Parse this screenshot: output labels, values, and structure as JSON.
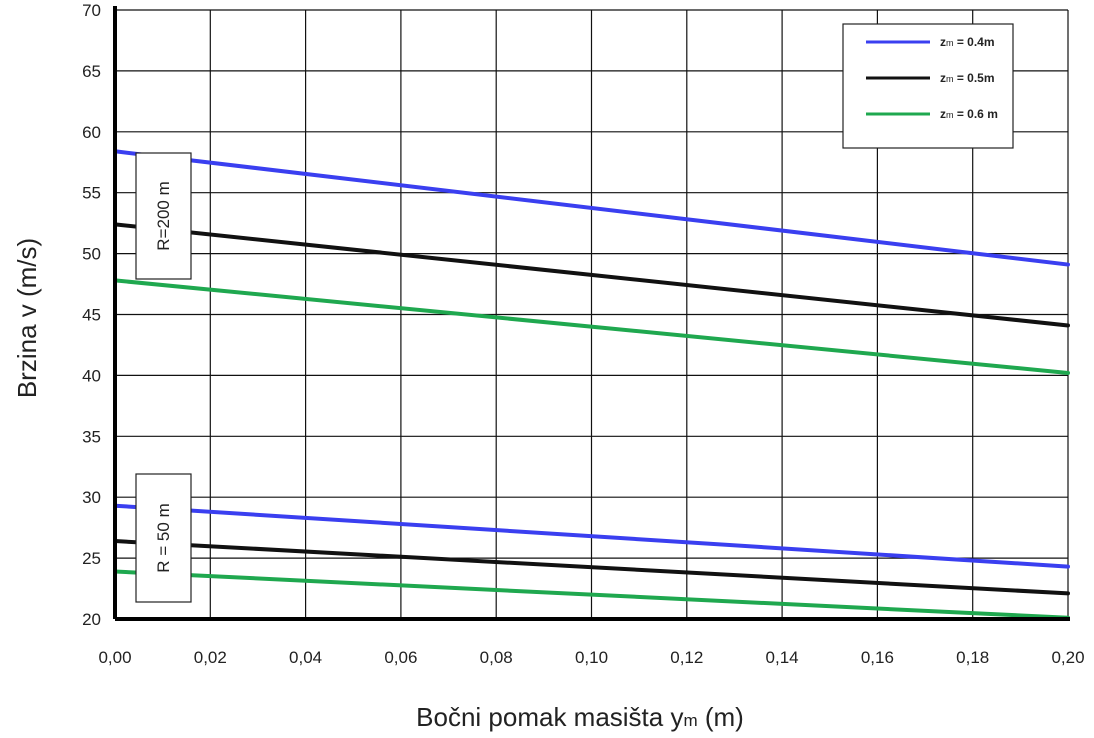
{
  "chart_data": {
    "type": "line",
    "xlabel": "Bočni pomak masišta y",
    "xlabel_sub": "m",
    "xlabel_unit": " (m)",
    "ylabel": "Brzina v (m/s)",
    "xlim": [
      0,
      0.2
    ],
    "ylim": [
      20,
      70
    ],
    "x_ticks": [
      "0,00",
      "0,02",
      "0,04",
      "0,06",
      "0,08",
      "0,10",
      "0,12",
      "0,14",
      "0,16",
      "0,18",
      "0,20"
    ],
    "y_ticks": [
      "20",
      "25",
      "30",
      "35",
      "40",
      "45",
      "50",
      "55",
      "60",
      "65",
      "70"
    ],
    "grid": true,
    "legend_position": "top-right",
    "legend": [
      {
        "main": "z",
        "sub": "m",
        "rest": " = 0.4m",
        "color": "#3a3ff0"
      },
      {
        "main": "z",
        "sub": "m",
        "rest": " = 0.5m",
        "color": "#111111"
      },
      {
        "main": "z",
        "sub": "m",
        "rest": " = 0.6 m",
        "color": "#1fa84f"
      }
    ],
    "groups": [
      {
        "label": "R=200 m"
      },
      {
        "label": "R = 50 m"
      }
    ],
    "series": [
      {
        "group": 0,
        "legend_index": 0,
        "color": "#3a3ff0",
        "x": [
          0,
          0.2
        ],
        "y": [
          58.4,
          49.1
        ]
      },
      {
        "group": 0,
        "legend_index": 1,
        "color": "#111111",
        "x": [
          0,
          0.2
        ],
        "y": [
          52.4,
          44.1
        ]
      },
      {
        "group": 0,
        "legend_index": 2,
        "color": "#1fa84f",
        "x": [
          0,
          0.2
        ],
        "y": [
          47.8,
          40.2
        ]
      },
      {
        "group": 1,
        "legend_index": 0,
        "color": "#3a3ff0",
        "x": [
          0,
          0.2
        ],
        "y": [
          29.3,
          24.3
        ]
      },
      {
        "group": 1,
        "legend_index": 1,
        "color": "#111111",
        "x": [
          0,
          0.2
        ],
        "y": [
          26.4,
          22.1
        ]
      },
      {
        "group": 1,
        "legend_index": 2,
        "color": "#1fa84f",
        "x": [
          0,
          0.2
        ],
        "y": [
          23.9,
          20.1
        ]
      }
    ]
  }
}
